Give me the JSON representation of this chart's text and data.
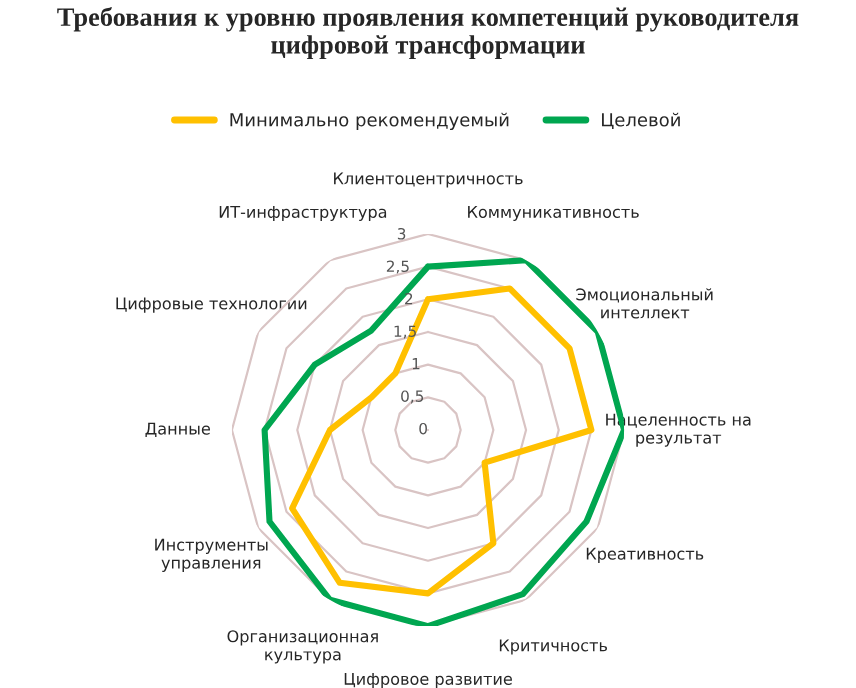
{
  "chart_data": {
    "type": "radar",
    "title": "Требования к уровню проявления компетенций руководителя\nцифровой трансформации",
    "categories": [
      "Клиентоцентричность",
      "Коммуникативность",
      "Эмоциональный\nинтеллект",
      "Нацеленность на\nрезультат",
      "Креативность",
      "Критичность",
      "Цифровое развитие",
      "Организационная\nкультура",
      "Инструменты\nуправления",
      "Данные",
      "Цифровые технологии",
      "ИТ-инфраструктура"
    ],
    "series": [
      {
        "name": "Минимально рекомендуемый",
        "color": "#ffc000",
        "values": [
          2,
          2.5,
          2.5,
          2.5,
          1,
          2,
          2.5,
          2.7,
          2.4,
          1.5,
          1,
          1
        ]
      },
      {
        "name": "Целевой",
        "color": "#00a650",
        "values": [
          2.5,
          3,
          3,
          3,
          2.8,
          2.9,
          3,
          3,
          2.8,
          2.5,
          2,
          1.75
        ]
      }
    ],
    "ylim": [
      0,
      3
    ],
    "yticks": [
      {
        "value": 0,
        "label": "0"
      },
      {
        "value": 0.5,
        "label": "0,5"
      },
      {
        "value": 1,
        "label": "1"
      },
      {
        "value": 1.5,
        "label": "1,5"
      },
      {
        "value": 2,
        "label": "2"
      },
      {
        "value": 2.5,
        "label": "2,5"
      },
      {
        "value": 3,
        "label": "3"
      }
    ],
    "legend": "top",
    "grid": true,
    "marker": "none",
    "line_style": "solid"
  }
}
